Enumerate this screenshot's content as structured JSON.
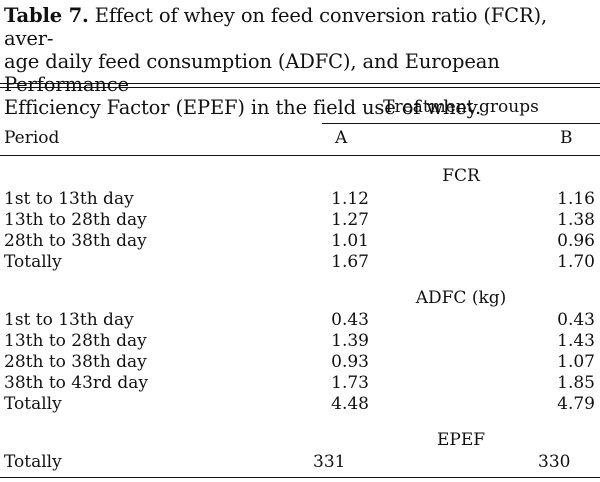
{
  "caption": {
    "label": "Table 7.",
    "line1": "Effect of whey on feed conversion ratio (FCR), aver-",
    "line2": "age daily feed consumption (ADFC), and European Performance",
    "line3": "Efficiency Factor (EPEF) in the field use of whey."
  },
  "header": {
    "group_title": "Treatment groups",
    "period": "Period",
    "col_a": "A",
    "col_b": "B"
  },
  "sections": [
    {
      "title": "FCR",
      "rows": [
        {
          "period": "1st to 13th day",
          "a": "1.12",
          "b": "1.16"
        },
        {
          "period": "13th to 28th day",
          "a": "1.27",
          "b": "1.38"
        },
        {
          "period": "28th to 38th day",
          "a": "1.01",
          "b": "0.96"
        },
        {
          "period": "Totally",
          "a": "1.67",
          "b": "1.70"
        }
      ]
    },
    {
      "title": "ADFC (kg)",
      "rows": [
        {
          "period": "1st to 13th day",
          "a": "0.43",
          "b": "0.43"
        },
        {
          "period": "13th to 28th day",
          "a": "1.39",
          "b": "1.43"
        },
        {
          "period": "28th to 38th day",
          "a": "0.93",
          "b": "1.07"
        },
        {
          "period": "38th to 43rd day",
          "a": "1.73",
          "b": "1.85"
        },
        {
          "period": "Totally",
          "a": "4.48",
          "b": "4.79"
        }
      ]
    },
    {
      "title": "EPEF",
      "rows": [
        {
          "period": "Totally",
          "a": "331",
          "b": "330"
        }
      ]
    }
  ]
}
